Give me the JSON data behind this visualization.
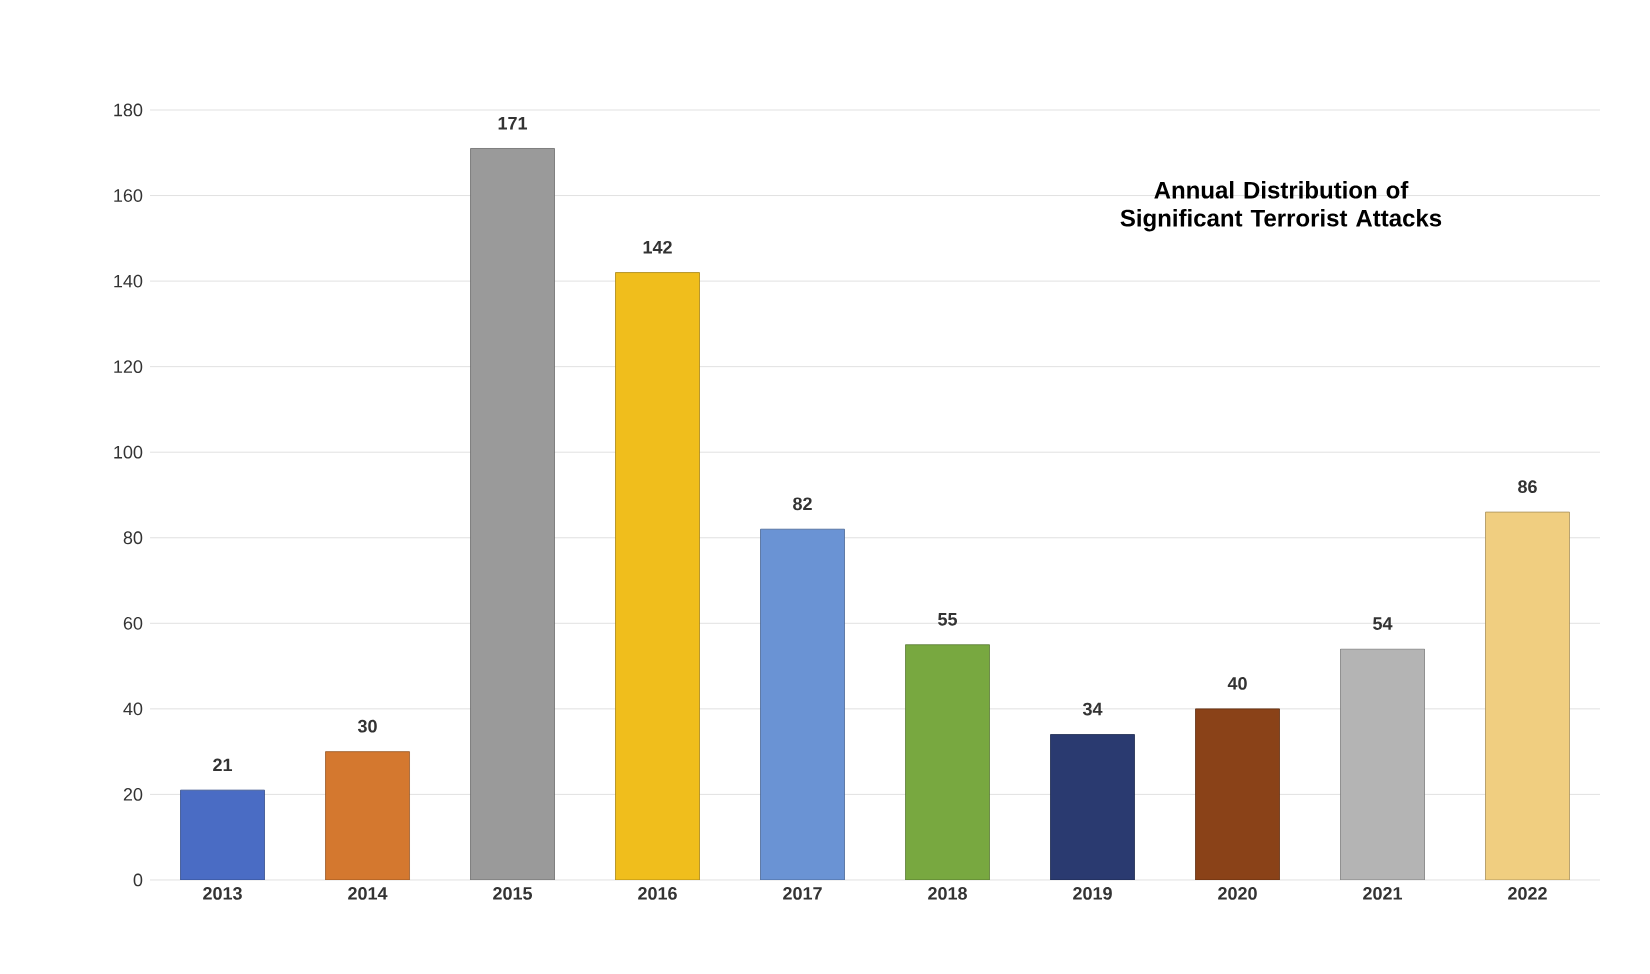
{
  "chart_data": {
    "type": "bar",
    "title": "Annual Distribution of Significant Terrorist Attacks",
    "categories": [
      "2013",
      "2014",
      "2015",
      "2016",
      "2017",
      "2018",
      "2019",
      "2020",
      "2021",
      "2022"
    ],
    "values": [
      21,
      30,
      171,
      142,
      82,
      55,
      34,
      40,
      54,
      86
    ],
    "colors": [
      "#4a6cc4",
      "#d4782f",
      "#9a9a9a",
      "#f0be1c",
      "#6a93d4",
      "#78a840",
      "#2a3a70",
      "#8a4218",
      "#b4b4b4",
      "#f0ce80"
    ],
    "ylim": [
      0,
      180
    ],
    "yticks": [
      0,
      20,
      40,
      60,
      80,
      100,
      120,
      140,
      160,
      180
    ],
    "grid": "y",
    "data_labels": true
  }
}
